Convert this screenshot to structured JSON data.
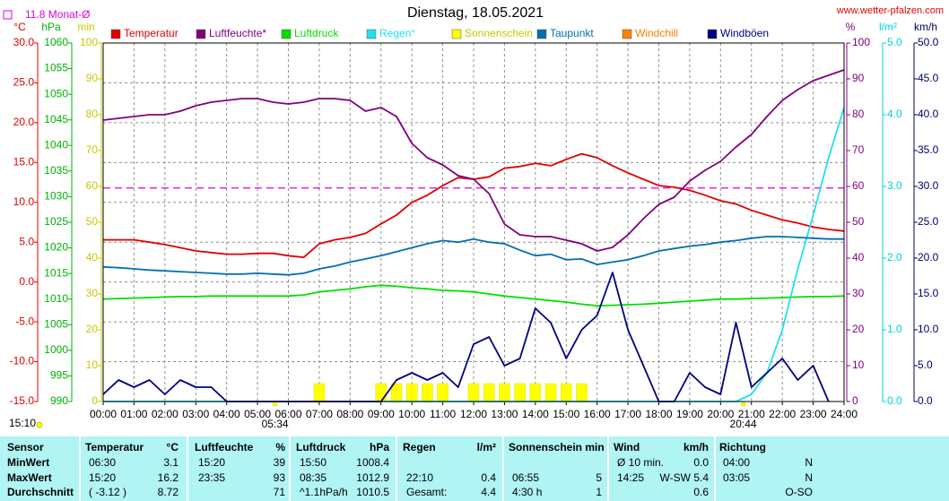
{
  "chart_data": {
    "type": "line",
    "title": "Dienstag, 18.05.2021",
    "source": "www.wetter-pfalzen.com",
    "updated": "15:10",
    "monthly_mean": {
      "value": 11.8,
      "label": "11.8 Monat-Ø",
      "axis": "°C",
      "color": "#e000e0"
    },
    "sunrise": {
      "value": 5.567,
      "label": "05:34"
    },
    "sunset": {
      "value": 20.733,
      "label": "20:44"
    },
    "grid": true,
    "xlim": [
      0,
      24
    ],
    "xticks": [
      {
        "value": 0,
        "label": "00:00"
      },
      {
        "value": 1,
        "label": "01:00"
      },
      {
        "value": 2,
        "label": "02:00"
      },
      {
        "value": 3,
        "label": "03:00"
      },
      {
        "value": 4,
        "label": "04:00"
      },
      {
        "value": 5,
        "label": "05:00"
      },
      {
        "value": 6,
        "label": "06:00"
      },
      {
        "value": 7,
        "label": "07:00"
      },
      {
        "value": 8,
        "label": "08:00"
      },
      {
        "value": 9,
        "label": "09:00"
      },
      {
        "value": 10,
        "label": "10:00"
      },
      {
        "value": 11,
        "label": "11:00"
      },
      {
        "value": 12,
        "label": "12:00"
      },
      {
        "value": 13,
        "label": "13:00"
      },
      {
        "value": 14,
        "label": "14:00"
      },
      {
        "value": 15,
        "label": "15:00"
      },
      {
        "value": 16,
        "label": "16:00"
      },
      {
        "value": 17,
        "label": "17:00"
      },
      {
        "value": 18,
        "label": "18:00"
      },
      {
        "value": 19,
        "label": "19:00"
      },
      {
        "value": 20,
        "label": "20:00"
      },
      {
        "value": 21,
        "label": "21:00"
      },
      {
        "value": 22,
        "label": "22:00"
      },
      {
        "value": 23,
        "label": "23:00"
      },
      {
        "value": 24,
        "label": "24:00"
      }
    ],
    "axes": [
      {
        "label": "°C",
        "side": "left",
        "color": "#e00000",
        "lim": [
          -15,
          30
        ],
        "ticks": [
          {
            "value": 30,
            "label": "30.0"
          },
          {
            "value": 25,
            "label": "25.0"
          },
          {
            "value": 20,
            "label": "20.0"
          },
          {
            "value": 15,
            "label": "15.0"
          },
          {
            "value": 10,
            "label": "10.0"
          },
          {
            "value": 5,
            "label": "5.0"
          },
          {
            "value": 0,
            "label": "0.0"
          },
          {
            "value": -5,
            "label": "-5.0"
          },
          {
            "value": -10,
            "label": "-10.0"
          },
          {
            "value": -15,
            "label": "-15.0"
          }
        ]
      },
      {
        "label": "hPa",
        "side": "left",
        "color": "#00b000",
        "lim": [
          990,
          1060
        ],
        "ticks": [
          1060,
          1055,
          1050,
          1045,
          1040,
          1035,
          1030,
          1025,
          1020,
          1015,
          1010,
          1005,
          1000,
          995,
          990
        ]
      },
      {
        "label": "min",
        "side": "left",
        "color": "#c8c800",
        "lim": [
          0,
          100
        ],
        "ticks": [
          100,
          90,
          80,
          70,
          60,
          50,
          40,
          30,
          20,
          10,
          0
        ]
      },
      {
        "label": "%",
        "side": "right",
        "color": "#800080",
        "lim": [
          0,
          100
        ],
        "ticks": [
          100,
          90,
          80,
          70,
          60,
          50,
          40,
          30,
          20,
          10,
          0
        ]
      },
      {
        "label": "l/m²",
        "side": "right",
        "color": "#00d0e0",
        "lim": [
          0,
          5
        ],
        "ticks": [
          {
            "value": 5,
            "label": "5.0"
          },
          {
            "value": 4,
            "label": "4.0"
          },
          {
            "value": 3,
            "label": "3.0"
          },
          {
            "value": 2,
            "label": "2.0"
          },
          {
            "value": 1,
            "label": "1.0"
          },
          {
            "value": 0,
            "label": "0.0"
          }
        ]
      },
      {
        "label": "km/h",
        "side": "right",
        "color": "#000060",
        "lim": [
          0,
          50
        ],
        "ticks": [
          {
            "value": 50,
            "label": "50.0"
          },
          {
            "value": 45,
            "label": "45.0"
          },
          {
            "value": 40,
            "label": "40.0"
          },
          {
            "value": 35,
            "label": "35.0"
          },
          {
            "value": 30,
            "label": "30.0"
          },
          {
            "value": 25,
            "label": "25.0"
          },
          {
            "value": 20,
            "label": "20.0"
          },
          {
            "value": 15,
            "label": "15.0"
          },
          {
            "value": 10,
            "label": "10.0"
          },
          {
            "value": 5,
            "label": "5.0"
          },
          {
            "value": 0,
            "label": "0.0"
          }
        ]
      }
    ],
    "x": [
      0,
      0.5,
      1,
      1.5,
      2,
      2.5,
      3,
      3.5,
      4,
      4.5,
      5,
      5.5,
      6,
      6.5,
      7,
      7.5,
      8,
      8.5,
      9,
      9.5,
      10,
      10.5,
      11,
      11.5,
      12,
      12.5,
      13,
      13.5,
      14,
      14.5,
      15,
      15.5,
      16,
      16.5,
      17,
      17.5,
      18,
      18.5,
      19,
      19.5,
      20,
      20.5,
      21,
      21.5,
      22,
      22.5,
      23,
      23.5,
      24
    ],
    "series": [
      {
        "name": "Temperatur",
        "color": "#e00000",
        "axis": "°C",
        "mark": "line",
        "values": [
          5.3,
          5.3,
          5.3,
          5.0,
          4.7,
          4.3,
          3.9,
          3.7,
          3.5,
          3.5,
          3.6,
          3.6,
          3.3,
          3.1,
          4.8,
          5.3,
          5.6,
          6.1,
          7.3,
          8.4,
          10.0,
          10.9,
          12.1,
          13.1,
          12.9,
          13.2,
          14.3,
          14.5,
          14.9,
          14.6,
          15.4,
          16.1,
          15.6,
          14.6,
          13.7,
          12.9,
          12.1,
          11.9,
          11.5,
          10.9,
          10.2,
          9.8,
          9.0,
          8.4,
          7.8,
          7.4,
          6.9,
          6.6,
          6.4
        ]
      },
      {
        "name": "Luftfeuchte*",
        "color": "#800080",
        "axis": "%",
        "mark": "line",
        "values": [
          78.5,
          79,
          79.5,
          80,
          80,
          81,
          82.5,
          83.5,
          84,
          84.5,
          84.5,
          83.5,
          83,
          83.5,
          84.5,
          84.5,
          84,
          81,
          82,
          79.5,
          72,
          68,
          66,
          63,
          62,
          58,
          49.5,
          46.5,
          46,
          46,
          45,
          44,
          42,
          43,
          46.5,
          51,
          55,
          57,
          61.5,
          64.5,
          67,
          71,
          74.5,
          79.5,
          84,
          87,
          89.5,
          91,
          92.5
        ]
      },
      {
        "name": "Luftdruck",
        "color": "#00e000",
        "axis": "hPa",
        "mark": "line",
        "values": [
          1010.0,
          1010.1,
          1010.2,
          1010.3,
          1010.4,
          1010.5,
          1010.5,
          1010.6,
          1010.6,
          1010.6,
          1010.6,
          1010.6,
          1010.6,
          1010.8,
          1011.4,
          1011.7,
          1012.0,
          1012.4,
          1012.7,
          1012.5,
          1012.2,
          1012.0,
          1011.7,
          1011.6,
          1011.4,
          1011.0,
          1010.6,
          1010.3,
          1010.0,
          1009.7,
          1009.4,
          1009.0,
          1008.7,
          1008.8,
          1008.9,
          1009.0,
          1009.2,
          1009.4,
          1009.6,
          1009.8,
          1010.0,
          1010.0,
          1010.1,
          1010.2,
          1010.3,
          1010.4,
          1010.5,
          1010.5,
          1010.6
        ]
      },
      {
        "name": "Regen°",
        "color": "#20e0f0",
        "axis": "l/m²",
        "mark": "line",
        "values": [
          0,
          0,
          0,
          0,
          0,
          0,
          0,
          0,
          0,
          0,
          0,
          0,
          0,
          0,
          0,
          0,
          0,
          0,
          0,
          0,
          0,
          0,
          0,
          0,
          0,
          0,
          0,
          0,
          0,
          0,
          0,
          0,
          0,
          0,
          0,
          0,
          0,
          0,
          0,
          0,
          0,
          0,
          0.1,
          0.4,
          1.0,
          1.85,
          2.6,
          3.4,
          4.1
        ]
      },
      {
        "name": "Sonnenschein",
        "color": "#ffff00",
        "axis": "min",
        "mark": "bar",
        "values": [
          0,
          0,
          0,
          0,
          0,
          0,
          0,
          0,
          0,
          0,
          0,
          0,
          0,
          0,
          5,
          0,
          0,
          0,
          5,
          5,
          5,
          5,
          5,
          0,
          5,
          5,
          5,
          5,
          5,
          5,
          5,
          5,
          0,
          0,
          0,
          0,
          0,
          0,
          0,
          0,
          0,
          0,
          0,
          0,
          0,
          0,
          0,
          0,
          0
        ]
      },
      {
        "name": "Taupunkt",
        "color": "#0070b0",
        "axis": "°C",
        "mark": "line",
        "values": [
          1.9,
          1.8,
          1.65,
          1.5,
          1.4,
          1.3,
          1.2,
          1.1,
          1.0,
          1.0,
          1.1,
          1.0,
          0.9,
          1.1,
          1.65,
          2.0,
          2.5,
          2.9,
          3.3,
          3.8,
          4.3,
          4.8,
          5.2,
          5.0,
          5.4,
          5.0,
          4.8,
          4.0,
          3.3,
          3.5,
          2.8,
          2.9,
          2.2,
          2.5,
          2.8,
          3.3,
          3.9,
          4.2,
          4.5,
          4.7,
          5.0,
          5.2,
          5.5,
          5.7,
          5.7,
          5.6,
          5.5,
          5.4,
          5.4
        ]
      },
      {
        "name": "Windchill",
        "color": "#ff8000",
        "axis": "°C",
        "mark": "line"
      },
      {
        "name": "Windböen",
        "color": "#000080",
        "axis": "km/h",
        "mark": "line",
        "values": [
          1,
          3,
          2,
          3,
          1,
          3,
          2,
          2,
          0,
          0,
          0,
          0,
          0,
          0,
          0,
          0,
          0,
          0,
          0,
          3,
          4,
          3,
          4,
          2,
          8,
          9,
          5,
          6,
          13,
          11,
          6,
          10,
          12,
          18,
          10,
          5,
          0,
          0,
          4,
          2,
          1,
          11,
          2,
          4,
          6,
          3,
          5,
          0,
          null
        ]
      }
    ]
  },
  "table": {
    "header": [
      {
        "left": "Sensor"
      },
      {
        "left": "Temperatur",
        "right": "°C"
      },
      {
        "left": "Luftfeuchte",
        "right": "%"
      },
      {
        "left": "Luftdruck",
        "right": "hPa"
      },
      {
        "left": "Regen",
        "right": "l/m²"
      },
      {
        "left": "Sonnenschein min"
      },
      {
        "left": "Wind",
        "right": "km/h"
      },
      {
        "left": "Richtung"
      }
    ],
    "rows": [
      [
        {
          "left": "MinWert"
        },
        {
          "left": "06:30",
          "right": "3.1"
        },
        {
          "left": "15:20",
          "right": "39"
        },
        {
          "left": "15:50",
          "right": "1008.4"
        },
        {},
        {},
        {
          "left": "Ø 10 min.",
          "right": "0.0"
        },
        {
          "left": "04:00",
          "right": "N"
        }
      ],
      [
        {
          "left": "MaxWert"
        },
        {
          "left": "15:20",
          "right": "16.2"
        },
        {
          "left": "23:35",
          "right": "93"
        },
        {
          "left": "08:35",
          "right": "1012.9"
        },
        {
          "left": "22:10",
          "right": "0.4"
        },
        {
          "left": "06:55",
          "right": "5"
        },
        {
          "left": "14:25",
          "right": "W-SW 5.4"
        },
        {
          "left": "03:05",
          "right": "N"
        }
      ],
      [
        {
          "left": "Durchschnitt"
        },
        {
          "left": "( -3.12 )",
          "right": "8.72"
        },
        {
          "right": "71"
        },
        {
          "left": "^1.1hPa/h",
          "right": "1010.5"
        },
        {
          "left": "Gesamt:",
          "right": "4.4"
        },
        {
          "left": "4:30 h",
          "right": "1"
        },
        {
          "right": "0.6"
        },
        {
          "right": "O-SO"
        }
      ]
    ]
  }
}
